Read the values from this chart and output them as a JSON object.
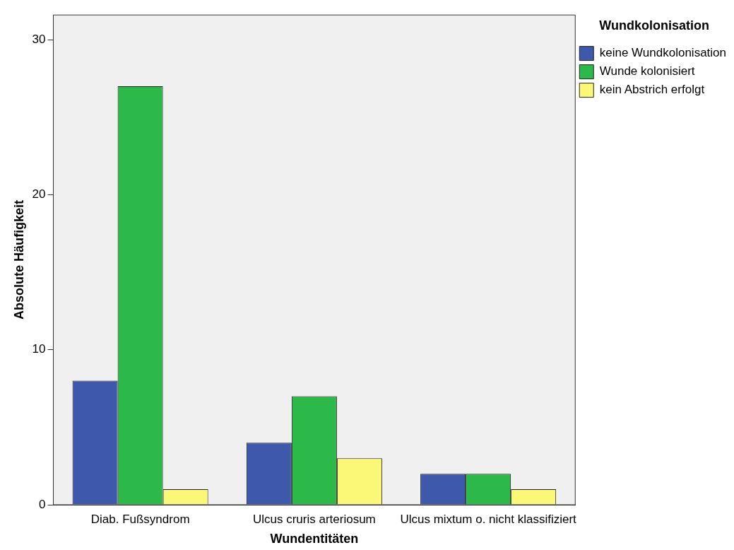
{
  "chart_data": {
    "type": "bar",
    "xlabel": "Wundentitäten",
    "ylabel": "Absolute Häufigkeit",
    "legend_title": "Wundkolonisation",
    "categories": [
      "Diab. Fußsyndrom",
      "Ulcus cruris arteriosum",
      "Ulcus mixtum o. nicht klassifiziert"
    ],
    "series": [
      {
        "name": "keine Wundkolonisation",
        "color": "#3e58ac",
        "values": [
          8,
          4,
          2
        ]
      },
      {
        "name": "Wunde kolonisiert",
        "color": "#2db84a",
        "values": [
          27,
          7,
          2
        ]
      },
      {
        "name": "kein Abstrich erfolgt",
        "color": "#fbf877",
        "values": [
          1,
          3,
          1
        ]
      }
    ],
    "ylim": [
      0,
      31.6
    ],
    "yticks": [
      0,
      10,
      20,
      30
    ],
    "grid": false,
    "legend": "right"
  }
}
